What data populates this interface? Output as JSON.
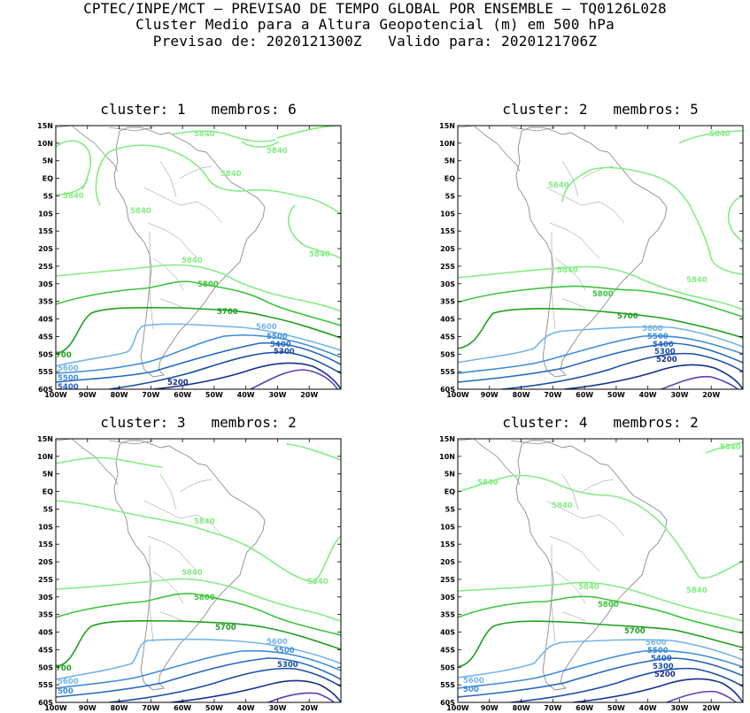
{
  "header": {
    "line1": "CPTEC/INPE/MCT — PREVISAO DE TEMPO GLOBAL POR ENSEMBLE — TQ0126L028",
    "line2": "Cluster Medio para a Altura Geopotencial (m) em 500 hPa",
    "line3": "Previsao de: 2020121300Z   Valido para: 2020121706Z"
  },
  "axes": {
    "lat_labels": [
      "15N",
      "10N",
      "5N",
      "EQ",
      "5S",
      "10S",
      "15S",
      "20S",
      "25S",
      "30S",
      "35S",
      "40S",
      "45S",
      "50S",
      "55S",
      "60S"
    ],
    "lon_labels": [
      "100W",
      "90W",
      "80W",
      "70W",
      "60W",
      "50W",
      "40W",
      "30W",
      "20W"
    ]
  },
  "colors": {
    "c5840": "#84ec84",
    "c5800": "#3cc43c",
    "c5700": "#1ea01e",
    "c5600": "#74b4e8",
    "c5500": "#3c8cd8",
    "c5400": "#2466c0",
    "c5300": "#184ca4",
    "c5200": "#14308c",
    "c5100": "#5c3cb4",
    "coast": "#8c8c8c"
  },
  "panels": [
    {
      "title": "cluster: 1   membros: 6",
      "labels": {
        "5840a": "5840",
        "5840b": "5840",
        "5840c": "5840",
        "5840d": "5840",
        "5840e": "5840",
        "5840f": "5840",
        "5840g": "5840",
        "5800": "5800",
        "5700": "5700",
        "5700b": "700",
        "5600": "5600",
        "5600b": "5600",
        "5500": "5500",
        "5500b": "5500",
        "5400": "5400",
        "5400b": "5400",
        "5300": "5300",
        "5200": "5200"
      }
    },
    {
      "title": "cluster: 2   membros: 5",
      "labels": {
        "5840a": "5840",
        "5840b": "5840",
        "5840c": "5840",
        "5840d": "5840",
        "5800": "5800",
        "5700": "5700",
        "5600": "5600",
        "5500": "5500",
        "5400": "5400",
        "5300": "5300",
        "5200": "5200"
      }
    },
    {
      "title": "cluster: 3   membros: 2",
      "labels": {
        "5840a": "5840",
        "5840b": "5840",
        "5840c": "5840",
        "5800": "5800",
        "5700": "5700",
        "5700b": "700",
        "5600": "5600",
        "5600b": "5600",
        "5500": "5500",
        "5500b": "500",
        "5300": "5300"
      }
    },
    {
      "title": "cluster: 4   membros: 2",
      "labels": {
        "5840a": "5840",
        "5840b": "5840",
        "5840c": "5840",
        "5840d": "5840",
        "5840e": "5840",
        "5800": "5800",
        "5700": "5700",
        "5600": "5600",
        "5600b": "5600",
        "5500": "5500",
        "5500b": "500",
        "5400": "5400",
        "5300": "5300",
        "5200": "5200"
      }
    }
  ]
}
